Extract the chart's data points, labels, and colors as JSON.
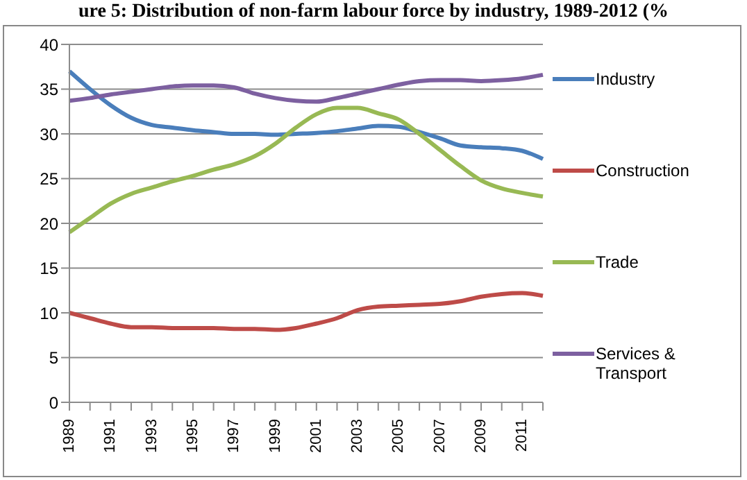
{
  "chart_data": {
    "type": "line",
    "title": "ure 5: Distribution of non-farm labour force by industry, 1989-2012 (%",
    "categories": [
      "1989",
      null,
      "1991",
      null,
      "1993",
      null,
      "1995",
      null,
      "1997",
      null,
      "1999",
      null,
      "2001",
      null,
      "2003",
      null,
      "2005",
      null,
      "2007",
      null,
      "2009",
      null,
      "2011",
      null
    ],
    "series": [
      {
        "name": "Industry",
        "color": "#4a7ebb",
        "values": [
          37,
          35,
          33.2,
          31.8,
          31,
          30.7,
          30.4,
          30.2,
          30,
          30,
          29.9,
          30,
          30.1,
          30.3,
          30.6,
          30.9,
          30.8,
          30.2,
          29.5,
          28.7,
          28.5,
          28.4,
          28.1,
          27.2
        ]
      },
      {
        "name": "Construction",
        "color": "#be4b48",
        "values": [
          10,
          9.4,
          8.8,
          8.4,
          8.4,
          8.3,
          8.3,
          8.3,
          8.2,
          8.2,
          8.1,
          8.3,
          8.8,
          9.4,
          10.3,
          10.7,
          10.8,
          10.9,
          11,
          11.3,
          11.8,
          12.1,
          12.2,
          11.9
        ]
      },
      {
        "name": "Trade",
        "color": "#98b954",
        "values": [
          19,
          20.6,
          22.2,
          23.3,
          24,
          24.7,
          25.3,
          26,
          26.6,
          27.5,
          28.9,
          30.7,
          32.2,
          32.9,
          32.9,
          32.3,
          31.6,
          30,
          28.2,
          26.4,
          24.8,
          23.9,
          23.4,
          23
        ]
      },
      {
        "name": "Services & Transport",
        "color": "#7d60a0",
        "values": [
          33.7,
          34,
          34.4,
          34.7,
          35,
          35.3,
          35.4,
          35.4,
          35.2,
          34.5,
          34,
          33.7,
          33.6,
          34,
          34.5,
          35,
          35.5,
          35.9,
          36,
          36,
          35.9,
          36,
          36.2,
          36.6
        ]
      }
    ],
    "ylim": [
      0,
      40
    ],
    "yticks": [
      0,
      5,
      10,
      15,
      20,
      25,
      30,
      35,
      40
    ],
    "grid": "y",
    "legend": "right",
    "marker": "none",
    "line_style": "solid"
  }
}
